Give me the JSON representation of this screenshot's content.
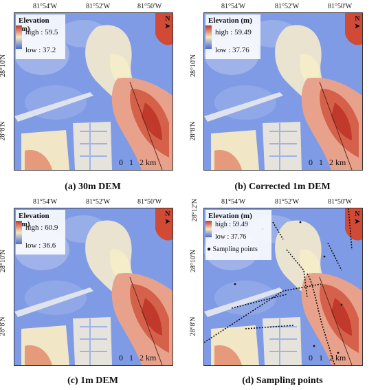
{
  "axis_labels": {
    "x_ticks": [
      "81°54'W",
      "81°52'W",
      "81°50'W"
    ],
    "y_ticks": [
      "28°10'N",
      "28°8'N"
    ],
    "y_ticks_panel_d": [
      "28°12'N",
      "28°10'N",
      "28°8'N"
    ]
  },
  "scale_bar": {
    "t0": "0",
    "t1": "1",
    "t2": "2",
    "unit": "km"
  },
  "north_label": "N",
  "legend_title": "Elevation (m)",
  "panels": [
    {
      "caption": "(a) 30m DEM",
      "high": "high : 59.5",
      "low": "low : 37.2"
    },
    {
      "caption": "(b) Corrected 1m DEM",
      "high": "high : 59.49",
      "low": "low : 37.76"
    },
    {
      "caption": "(c) 1m DEM",
      "high": "high : 60.9",
      "low": "low : 36.6"
    },
    {
      "caption": "(d) Sampling points",
      "high": "high : 59.49",
      "low": "low : 37.76",
      "points_label": "Sampling points"
    }
  ],
  "colors": {
    "high": "#c1392b",
    "mid": "#f4e7bf",
    "low": "#4a6bd8",
    "water": "#5a7ee0"
  }
}
